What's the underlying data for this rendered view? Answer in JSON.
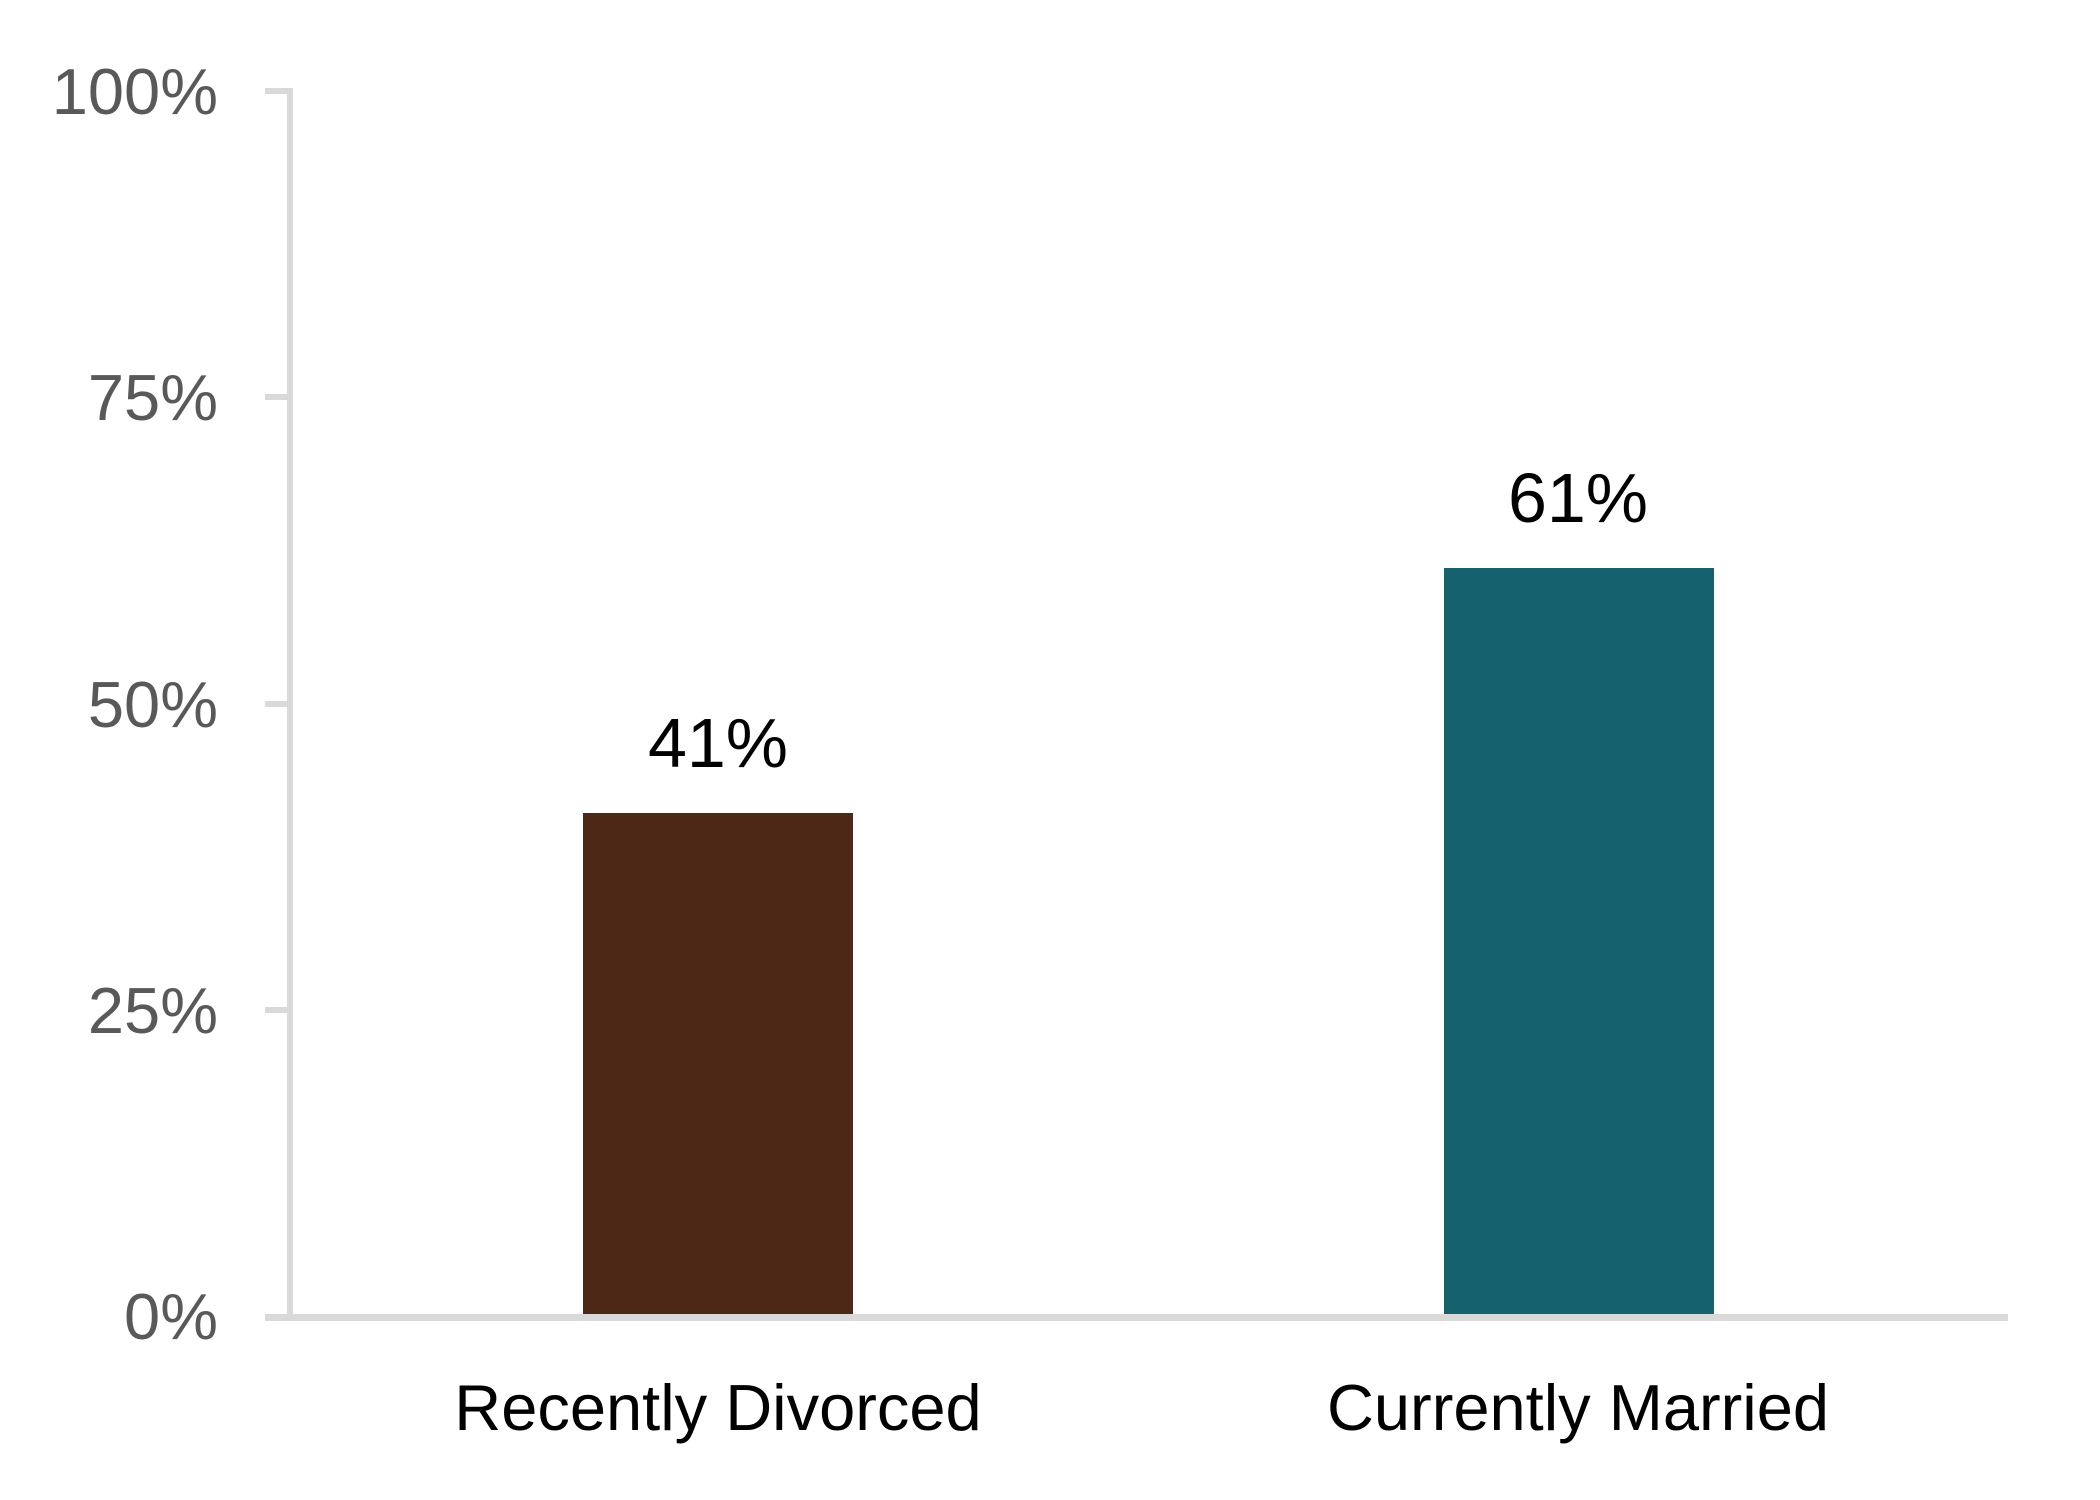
{
  "chart_data": {
    "type": "bar",
    "title": "",
    "xlabel": "",
    "ylabel": "",
    "categories": [
      "Recently Divorced",
      "Currently Married"
    ],
    "values": [
      41,
      61
    ],
    "value_labels": [
      "41%",
      "61%"
    ],
    "bar_colors": [
      "#4D2817",
      "#15626E"
    ],
    "ytick_labels": [
      "100%",
      "75%",
      "50%",
      "25%",
      "0%"
    ],
    "ytick_values": [
      100,
      75,
      50,
      25,
      0
    ],
    "ylim": [
      0,
      100
    ],
    "grid": false,
    "legend": false,
    "axis_color": "#D9D9D9",
    "tick_label_color": "#595959",
    "value_label_color": "#000000",
    "category_label_color": "#000000"
  }
}
